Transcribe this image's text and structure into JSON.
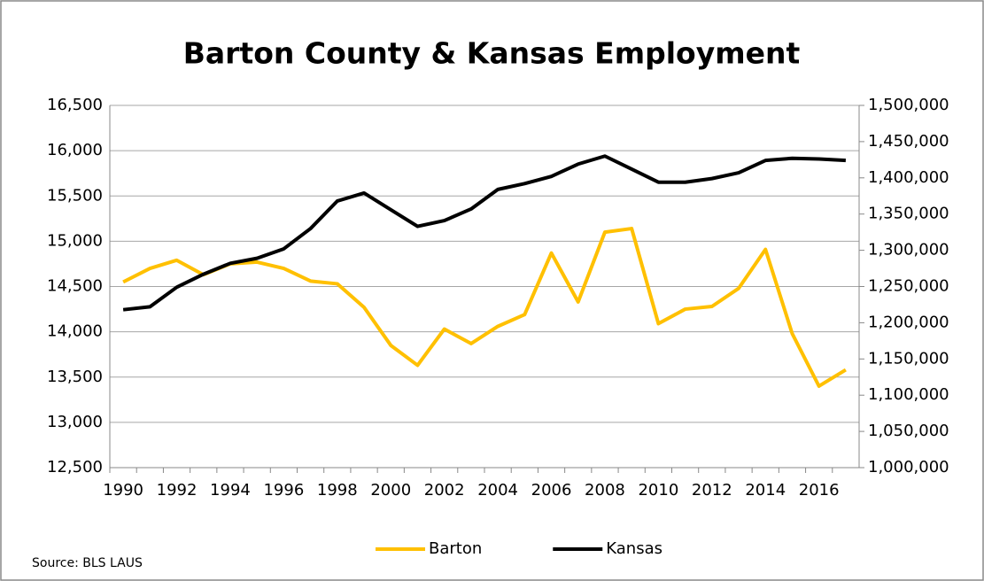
{
  "chart_data": {
    "type": "line",
    "title": "Barton County & Kansas Employment",
    "source": "Source: BLS LAUS",
    "categories": [
      "1990",
      null,
      "1992",
      null,
      "1994",
      null,
      "1996",
      null,
      "1998",
      null,
      "2000",
      null,
      "2002",
      null,
      "2004",
      null,
      "2006",
      null,
      "2008",
      null,
      "2010",
      null,
      "2012",
      null,
      "2014",
      null,
      "2016",
      null
    ],
    "series": [
      {
        "name": "Barton",
        "color": "#ffc000",
        "axis": "y",
        "values": [
          14550,
          14700,
          14790,
          14630,
          14750,
          14770,
          14700,
          14560,
          14530,
          14270,
          13850,
          13630,
          14030,
          13870,
          14060,
          14190,
          14870,
          14330,
          15100,
          15140,
          14090,
          14250,
          14280,
          14480,
          14910,
          13980,
          13400,
          13580
        ]
      },
      {
        "name": "Kansas",
        "color": "#000000",
        "axis": "y2",
        "values": [
          1218000,
          1222000,
          1249000,
          1267000,
          1282000,
          1289000,
          1302000,
          1330000,
          1368000,
          1379000,
          1356000,
          1333000,
          1341000,
          1357000,
          1384000,
          1392000,
          1402000,
          1419000,
          1430000,
          1412000,
          1394000,
          1394000,
          1399000,
          1407000,
          1424000,
          1427000,
          1426000,
          1424000
        ]
      }
    ],
    "ylim": [
      12500,
      16500
    ],
    "yticks": [
      {
        "value": 12500,
        "label": "12,500"
      },
      {
        "value": 13000,
        "label": "13,000"
      },
      {
        "value": 13500,
        "label": "13,500"
      },
      {
        "value": 14000,
        "label": "14,000"
      },
      {
        "value": 14500,
        "label": "14,500"
      },
      {
        "value": 15000,
        "label": "15,000"
      },
      {
        "value": 15500,
        "label": "15,500"
      },
      {
        "value": 16000,
        "label": "16,000"
      },
      {
        "value": 16500,
        "label": "16,500"
      }
    ],
    "y2lim": [
      1000000,
      1500000
    ],
    "y2ticks": [
      {
        "value": 1000000,
        "label": "1,000,000"
      },
      {
        "value": 1050000,
        "label": "1,050,000"
      },
      {
        "value": 1100000,
        "label": "1,100,000"
      },
      {
        "value": 1150000,
        "label": "1,150,000"
      },
      {
        "value": 1200000,
        "label": "1,200,000"
      },
      {
        "value": 1250000,
        "label": "1,250,000"
      },
      {
        "value": 1300000,
        "label": "1,300,000"
      },
      {
        "value": 1350000,
        "label": "1,350,000"
      },
      {
        "value": 1400000,
        "label": "1,400,000"
      },
      {
        "value": 1450000,
        "label": "1,450,000"
      },
      {
        "value": 1500000,
        "label": "1,500,000"
      }
    ],
    "grid": true,
    "legend": "bottom"
  }
}
